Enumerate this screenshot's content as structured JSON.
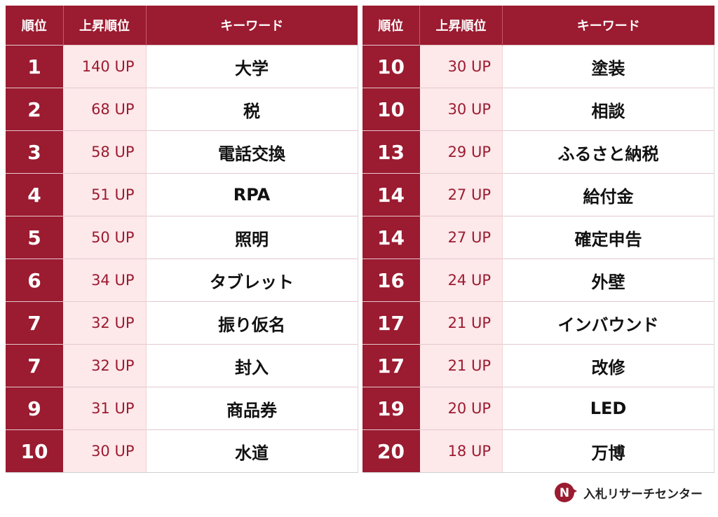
{
  "headers": {
    "rank": "順位",
    "up": "上昇順位",
    "keyword": "キーワード"
  },
  "left_rows": [
    {
      "rank": "1",
      "up": "140 UP",
      "keyword": "大学"
    },
    {
      "rank": "2",
      "up": "68 UP",
      "keyword": "税"
    },
    {
      "rank": "3",
      "up": "58 UP",
      "keyword": "電話交換"
    },
    {
      "rank": "4",
      "up": "51 UP",
      "keyword": "RPA"
    },
    {
      "rank": "5",
      "up": "50 UP",
      "keyword": "照明"
    },
    {
      "rank": "6",
      "up": "34 UP",
      "keyword": "タブレット"
    },
    {
      "rank": "7",
      "up": "32 UP",
      "keyword": "振り仮名"
    },
    {
      "rank": "7",
      "up": "32 UP",
      "keyword": "封入"
    },
    {
      "rank": "9",
      "up": "31 UP",
      "keyword": "商品券"
    },
    {
      "rank": "10",
      "up": "30 UP",
      "keyword": "水道"
    }
  ],
  "right_rows": [
    {
      "rank": "10",
      "up": "30 UP",
      "keyword": "塗装"
    },
    {
      "rank": "10",
      "up": "30 UP",
      "keyword": "相談"
    },
    {
      "rank": "13",
      "up": "29 UP",
      "keyword": "ふるさと納税"
    },
    {
      "rank": "14",
      "up": "27 UP",
      "keyword": "給付金"
    },
    {
      "rank": "14",
      "up": "27 UP",
      "keyword": "確定申告"
    },
    {
      "rank": "16",
      "up": "24 UP",
      "keyword": "外壁"
    },
    {
      "rank": "17",
      "up": "21 UP",
      "keyword": "インバウンド"
    },
    {
      "rank": "17",
      "up": "21 UP",
      "keyword": "改修"
    },
    {
      "rank": "19",
      "up": "20 UP",
      "keyword": "LED"
    },
    {
      "rank": "20",
      "up": "18 UP",
      "keyword": "万博"
    }
  ],
  "logo": {
    "text": "入札リサーチセンター",
    "mark_letter": "N",
    "icon": "nyusatsu-logo-icon"
  },
  "colors": {
    "accent": "#9b1b30",
    "up_bg": "#fde8ea",
    "text": "#111111"
  }
}
